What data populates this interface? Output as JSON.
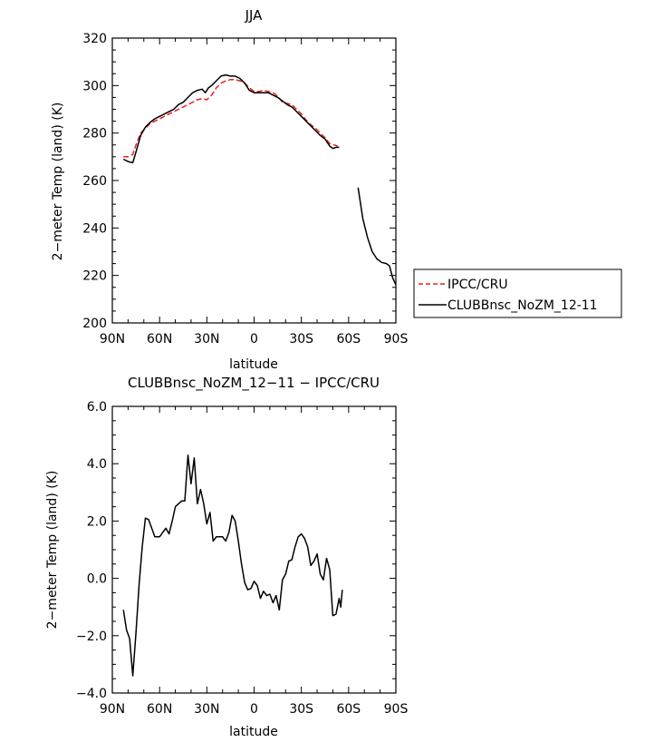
{
  "chart_data": [
    {
      "type": "line",
      "title": "JJA",
      "xlabel": "latitude",
      "ylabel": "2−meter Temp (land) (K)",
      "xlim": [
        90,
        -90
      ],
      "ylim": [
        200,
        320
      ],
      "x_ticks": [
        90,
        60,
        30,
        0,
        -30,
        -60,
        -90
      ],
      "x_tick_labels": [
        "90N",
        "60N",
        "30N",
        "0",
        "30S",
        "60S",
        "90S"
      ],
      "y_ticks": [
        200,
        220,
        240,
        260,
        280,
        300,
        320
      ],
      "y_tick_labels": [
        "200",
        "220",
        "240",
        "260",
        "280",
        "300",
        "320"
      ],
      "legend_position": "right",
      "series": [
        {
          "name": "IPCC/CRU",
          "color": "#e8211c",
          "dash": "dashed",
          "segments": [
            [
              [
                83,
                270
              ],
              [
                80,
                270
              ],
              [
                77,
                271
              ],
              [
                75,
                275
              ],
              [
                72,
                280
              ],
              [
                69,
                282
              ],
              [
                66,
                284
              ],
              [
                63,
                285
              ],
              [
                60,
                286
              ],
              [
                57,
                287
              ],
              [
                54,
                288
              ],
              [
                51,
                289
              ],
              [
                48,
                290
              ],
              [
                45,
                291
              ],
              [
                42,
                292
              ],
              [
                39,
                293
              ],
              [
                36,
                294
              ],
              [
                33,
                294.5
              ],
              [
                30,
                294
              ],
              [
                27,
                296
              ],
              [
                24,
                299
              ],
              [
                21,
                301
              ],
              [
                18,
                302
              ],
              [
                15,
                302.5
              ],
              [
                12,
                302.5
              ],
              [
                9,
                302
              ],
              [
                6,
                301
              ],
              [
                3,
                299
              ],
              [
                0,
                297.5
              ],
              [
                -3,
                297.5
              ],
              [
                -6,
                298
              ],
              [
                -9,
                297.5
              ],
              [
                -12,
                297
              ],
              [
                -15,
                295.5
              ],
              [
                -18,
                293
              ],
              [
                -21,
                292.5
              ],
              [
                -24,
                292
              ],
              [
                -27,
                290
              ],
              [
                -30,
                288
              ],
              [
                -33,
                285.5
              ],
              [
                -36,
                283.5
              ],
              [
                -39,
                282
              ],
              [
                -42,
                280
              ],
              [
                -45,
                278
              ],
              [
                -48,
                275.5
              ],
              [
                -51,
                275
              ],
              [
                -53,
                274.5
              ]
            ]
          ]
        },
        {
          "name": "CLUBBnsc_NoZM_12-11",
          "color": "#000000",
          "dash": "solid",
          "segments": [
            [
              [
                83,
                269
              ],
              [
                80,
                268
              ],
              [
                77,
                267.5
              ],
              [
                75,
                272
              ],
              [
                72,
                279
              ],
              [
                69,
                282.5
              ],
              [
                66,
                284.5
              ],
              [
                63,
                286
              ],
              [
                60,
                287
              ],
              [
                57,
                288
              ],
              [
                54,
                289
              ],
              [
                51,
                290
              ],
              [
                48,
                292
              ],
              [
                45,
                293
              ],
              [
                42,
                295
              ],
              [
                39,
                297
              ],
              [
                36,
                298
              ],
              [
                33,
                298.5
              ],
              [
                31,
                297
              ],
              [
                29,
                299
              ],
              [
                27,
                300
              ],
              [
                24,
                302
              ],
              [
                21,
                304
              ],
              [
                18,
                304.5
              ],
              [
                15,
                304
              ],
              [
                12,
                304
              ],
              [
                9,
                303
              ],
              [
                6,
                301
              ],
              [
                3,
                298
              ],
              [
                0,
                297
              ],
              [
                -3,
                297
              ],
              [
                -6,
                297
              ],
              [
                -9,
                297
              ],
              [
                -12,
                296
              ],
              [
                -15,
                295
              ],
              [
                -18,
                293.5
              ],
              [
                -21,
                292
              ],
              [
                -24,
                291
              ],
              [
                -27,
                289
              ],
              [
                -30,
                287
              ],
              [
                -33,
                285
              ],
              [
                -36,
                283
              ],
              [
                -39,
                281
              ],
              [
                -42,
                279
              ],
              [
                -45,
                277.5
              ],
              [
                -48,
                274.5
              ],
              [
                -50,
                273.5
              ],
              [
                -52,
                274
              ],
              [
                -54,
                274
              ]
            ],
            [
              [
                -66,
                257
              ],
              [
                -69,
                244
              ],
              [
                -72,
                236
              ],
              [
                -75,
                230
              ],
              [
                -78,
                227
              ],
              [
                -81,
                225.5
              ],
              [
                -84,
                225
              ],
              [
                -86,
                224
              ],
              [
                -88,
                219
              ],
              [
                -90,
                216
              ]
            ]
          ]
        }
      ]
    },
    {
      "type": "line",
      "title": "CLUBBnsc_NoZM_12−11 − IPCC/CRU",
      "xlabel": "latitude",
      "ylabel": "2−meter Temp (land) (K)",
      "xlim": [
        90,
        -90
      ],
      "ylim": [
        -4,
        6
      ],
      "x_ticks": [
        90,
        60,
        30,
        0,
        -30,
        -60,
        -90
      ],
      "x_tick_labels": [
        "90N",
        "60N",
        "30N",
        "0",
        "30S",
        "60S",
        "90S"
      ],
      "y_ticks": [
        -4,
        -2,
        0,
        2,
        4,
        6
      ],
      "y_tick_labels": [
        "−4.0",
        "−2.0",
        "0.0",
        "2.0",
        "4.0",
        "6.0"
      ],
      "series": [
        {
          "color": "#000000",
          "dash": "solid",
          "segments": [
            [
              [
                83,
                -1.1
              ],
              [
                81,
                -1.8
              ],
              [
                79,
                -2.1
              ],
              [
                77,
                -3.4
              ],
              [
                75,
                -1.9
              ],
              [
                73,
                -0.2
              ],
              [
                71,
                1.1
              ],
              [
                69,
                2.1
              ],
              [
                67,
                2.05
              ],
              [
                65,
                1.75
              ],
              [
                63,
                1.45
              ],
              [
                60,
                1.45
              ],
              [
                58,
                1.6
              ],
              [
                56,
                1.75
              ],
              [
                54,
                1.55
              ],
              [
                52,
                2.0
              ],
              [
                50,
                2.5
              ],
              [
                48,
                2.6
              ],
              [
                46,
                2.7
              ],
              [
                44,
                2.7
              ],
              [
                42,
                4.3
              ],
              [
                40,
                3.3
              ],
              [
                38,
                4.2
              ],
              [
                36,
                2.6
              ],
              [
                34,
                3.1
              ],
              [
                32,
                2.6
              ],
              [
                30,
                1.9
              ],
              [
                28,
                2.3
              ],
              [
                26,
                1.3
              ],
              [
                24,
                1.45
              ],
              [
                22,
                1.45
              ],
              [
                20,
                1.45
              ],
              [
                18,
                1.3
              ],
              [
                16,
                1.6
              ],
              [
                14,
                2.2
              ],
              [
                12,
                2.0
              ],
              [
                10,
                1.3
              ],
              [
                8,
                0.5
              ],
              [
                6,
                -0.15
              ],
              [
                4,
                -0.4
              ],
              [
                2,
                -0.35
              ],
              [
                0,
                -0.1
              ],
              [
                -2,
                -0.25
              ],
              [
                -4,
                -0.7
              ],
              [
                -6,
                -0.45
              ],
              [
                -8,
                -0.6
              ],
              [
                -10,
                -0.55
              ],
              [
                -12,
                -0.85
              ],
              [
                -14,
                -0.6
              ],
              [
                -16,
                -1.1
              ],
              [
                -18,
                -0.05
              ],
              [
                -20,
                0.15
              ],
              [
                -22,
                0.6
              ],
              [
                -24,
                0.65
              ],
              [
                -26,
                1.1
              ],
              [
                -28,
                1.45
              ],
              [
                -30,
                1.55
              ],
              [
                -32,
                1.4
              ],
              [
                -34,
                1.1
              ],
              [
                -36,
                0.45
              ],
              [
                -38,
                0.6
              ],
              [
                -40,
                0.85
              ],
              [
                -42,
                0.15
              ],
              [
                -44,
                -0.05
              ],
              [
                -46,
                0.7
              ],
              [
                -48,
                0.3
              ],
              [
                -50,
                -1.3
              ],
              [
                -52,
                -1.25
              ],
              [
                -54,
                -0.7
              ],
              [
                -55,
                -1.0
              ],
              [
                -56,
                -0.4
              ]
            ]
          ]
        }
      ]
    }
  ]
}
